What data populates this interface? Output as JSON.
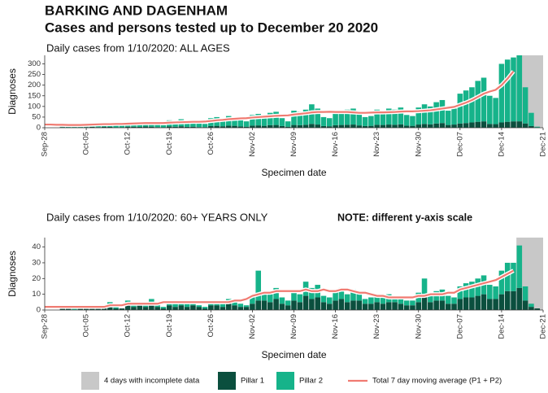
{
  "header": {
    "title": "BARKING AND DAGENHAM",
    "subtitle": "Cases and persons tested up to December 20 2020"
  },
  "shaded_label": "4 days with incomplete data",
  "shaded_color": "#c8c8c8",
  "chart_data": [
    {
      "type": "bar",
      "stacked": true,
      "title": "Daily cases from 1/10/2020: ALL AGES",
      "xlabel": "Specimen date",
      "ylabel": "Diagnoses",
      "x": [
        0,
        1,
        2,
        3,
        4,
        5,
        6,
        7,
        8,
        9,
        10,
        11,
        12,
        13,
        14,
        15,
        16,
        17,
        18,
        19,
        20,
        21,
        22,
        23,
        24,
        25,
        26,
        27,
        28,
        29,
        30,
        31,
        32,
        33,
        34,
        35,
        36,
        37,
        38,
        39,
        40,
        41,
        42,
        43,
        44,
        45,
        46,
        47,
        48,
        49,
        50,
        51,
        52,
        53,
        54,
        55,
        56,
        57,
        58,
        59,
        60,
        61,
        62,
        63,
        64,
        65,
        66,
        67,
        68,
        69,
        70,
        71,
        72,
        73,
        74,
        75,
        76,
        77,
        78,
        79,
        80,
        81,
        82,
        83
      ],
      "xlim": [
        0,
        84
      ],
      "xticks": [
        {
          "value": 0,
          "label": "Sep-28"
        },
        {
          "value": 7,
          "label": "Oct-05"
        },
        {
          "value": 14,
          "label": "Oct-12"
        },
        {
          "value": 21,
          "label": "Oct-19"
        },
        {
          "value": 28,
          "label": "Oct-26"
        },
        {
          "value": 35,
          "label": "Nov-02"
        },
        {
          "value": 42,
          "label": "Nov-09"
        },
        {
          "value": 49,
          "label": "Nov-16"
        },
        {
          "value": 56,
          "label": "Nov-23"
        },
        {
          "value": 63,
          "label": "Nov-30"
        },
        {
          "value": 70,
          "label": "Dec-07"
        },
        {
          "value": 77,
          "label": "Dec-14"
        },
        {
          "value": 84,
          "label": "Dec-21"
        }
      ],
      "ylim": [
        0,
        340
      ],
      "yticks": [
        0,
        50,
        100,
        150,
        200,
        250,
        300
      ],
      "shaded_xlim": [
        79.5,
        84
      ],
      "series": [
        {
          "name": "Pillar 1",
          "type": "bar",
          "color": "#0b4f3e",
          "values": [
            null,
            null,
            null,
            3,
            2,
            2,
            2,
            3,
            4,
            3,
            5,
            4,
            2,
            2,
            5,
            5,
            4,
            6,
            5,
            3,
            2,
            6,
            5,
            7,
            4,
            5,
            3,
            3,
            8,
            9,
            7,
            10,
            9,
            6,
            5,
            10,
            11,
            9,
            12,
            13,
            8,
            5,
            13,
            12,
            14,
            18,
            15,
            8,
            7,
            12,
            13,
            14,
            15,
            11,
            8,
            9,
            14,
            13,
            15,
            14,
            16,
            10,
            9,
            15,
            18,
            16,
            20,
            22,
            13,
            15,
            20,
            22,
            25,
            28,
            30,
            18,
            17,
            25,
            28,
            30,
            30,
            20,
            8,
            1
          ]
        },
        {
          "name": "Pillar 2",
          "type": "bar",
          "color": "#16b38a",
          "values": [
            null,
            null,
            null,
            12,
            10,
            6,
            8,
            15,
            16,
            12,
            20,
            18,
            10,
            8,
            20,
            23,
            18,
            24,
            20,
            12,
            10,
            29,
            25,
            33,
            21,
            25,
            17,
            15,
            37,
            41,
            33,
            45,
            41,
            29,
            25,
            50,
            54,
            46,
            58,
            62,
            37,
            25,
            67,
            63,
            71,
            92,
            75,
            42,
            38,
            63,
            67,
            71,
            75,
            59,
            42,
            46,
            71,
            67,
            75,
            71,
            79,
            50,
            46,
            80,
            92,
            84,
            100,
            108,
            67,
            75,
            140,
            153,
            165,
            192,
            205,
            132,
            123,
            275,
            292,
            300,
            310,
            170,
            62,
            4
          ]
        },
        {
          "name": "Total 7 day moving average (P1 + P2)",
          "type": "line",
          "color": "#f07b72",
          "values": [
            15,
            15,
            14,
            14,
            13,
            13,
            13,
            14,
            15,
            16,
            17,
            17,
            18,
            18,
            19,
            20,
            21,
            22,
            22,
            22,
            22,
            24,
            25,
            26,
            27,
            28,
            28,
            29,
            32,
            35,
            37,
            40,
            42,
            44,
            45,
            48,
            50,
            52,
            54,
            56,
            57,
            58,
            62,
            65,
            68,
            72,
            74,
            74,
            75,
            74,
            74,
            74,
            72,
            70,
            70,
            71,
            72,
            72,
            73,
            74,
            76,
            77,
            77,
            78,
            80,
            82,
            86,
            90,
            94,
            98,
            108,
            118,
            130,
            145,
            160,
            170,
            178,
            200,
            230,
            265,
            null,
            null,
            null,
            null
          ]
        }
      ]
    },
    {
      "type": "bar",
      "stacked": true,
      "title": "Daily cases from 1/10/2020: 60+ YEARS ONLY",
      "note": "NOTE: different y-axis scale",
      "xlabel": "Specimen date",
      "ylabel": "Diagnoses",
      "x": [
        0,
        1,
        2,
        3,
        4,
        5,
        6,
        7,
        8,
        9,
        10,
        11,
        12,
        13,
        14,
        15,
        16,
        17,
        18,
        19,
        20,
        21,
        22,
        23,
        24,
        25,
        26,
        27,
        28,
        29,
        30,
        31,
        32,
        33,
        34,
        35,
        36,
        37,
        38,
        39,
        40,
        41,
        42,
        43,
        44,
        45,
        46,
        47,
        48,
        49,
        50,
        51,
        52,
        53,
        54,
        55,
        56,
        57,
        58,
        59,
        60,
        61,
        62,
        63,
        64,
        65,
        66,
        67,
        68,
        69,
        70,
        71,
        72,
        73,
        74,
        75,
        76,
        77,
        78,
        79,
        80,
        81,
        82,
        83
      ],
      "xlim": [
        0,
        84
      ],
      "xticks": [
        {
          "value": 0,
          "label": "Sep-28"
        },
        {
          "value": 7,
          "label": "Oct-05"
        },
        {
          "value": 14,
          "label": "Oct-12"
        },
        {
          "value": 21,
          "label": "Oct-19"
        },
        {
          "value": 28,
          "label": "Oct-26"
        },
        {
          "value": 35,
          "label": "Nov-02"
        },
        {
          "value": 42,
          "label": "Nov-09"
        },
        {
          "value": 49,
          "label": "Nov-16"
        },
        {
          "value": 56,
          "label": "Nov-23"
        },
        {
          "value": 63,
          "label": "Nov-30"
        },
        {
          "value": 70,
          "label": "Dec-07"
        },
        {
          "value": 77,
          "label": "Dec-14"
        },
        {
          "value": 84,
          "label": "Dec-21"
        }
      ],
      "ylim": [
        0,
        46
      ],
      "yticks": [
        0,
        10,
        20,
        30,
        40
      ],
      "shaded_xlim": [
        79.5,
        84
      ],
      "series": [
        {
          "type": "bar",
          "color": "#0b4f3e",
          "values": [
            null,
            null,
            null,
            1,
            1,
            0,
            1,
            2,
            1,
            1,
            2,
            2,
            1,
            1,
            3,
            2,
            3,
            2,
            3,
            2,
            1,
            3,
            2,
            3,
            2,
            3,
            2,
            1,
            3,
            3,
            2,
            4,
            3,
            2,
            2,
            4,
            6,
            6,
            5,
            7,
            4,
            3,
            6,
            5,
            9,
            7,
            8,
            5,
            4,
            6,
            7,
            5,
            6,
            6,
            4,
            4,
            5,
            4,
            5,
            5,
            4,
            3,
            3,
            5,
            8,
            5,
            6,
            6,
            4,
            4,
            7,
            8,
            8,
            9,
            10,
            7,
            7,
            10,
            12,
            12,
            14,
            6,
            2,
            1
          ]
        },
        {
          "type": "bar",
          "color": "#16b38a",
          "values": [
            null,
            null,
            null,
            1,
            0,
            1,
            1,
            1,
            1,
            0,
            1,
            3,
            1,
            0,
            3,
            2,
            2,
            2,
            4,
            1,
            1,
            2,
            2,
            3,
            2,
            2,
            1,
            1,
            2,
            3,
            2,
            3,
            3,
            2,
            1,
            4,
            19,
            6,
            5,
            7,
            4,
            3,
            6,
            5,
            9,
            7,
            8,
            4,
            4,
            6,
            7,
            5,
            7,
            5,
            3,
            4,
            4,
            4,
            5,
            4,
            4,
            3,
            3,
            6,
            12,
            5,
            6,
            7,
            5,
            4,
            8,
            9,
            10,
            11,
            12,
            9,
            8,
            15,
            18,
            18,
            27,
            9,
            2,
            0
          ]
        },
        {
          "type": "line",
          "color": "#f07b72",
          "values": [
            2,
            2,
            2,
            2,
            2,
            2,
            2,
            2,
            2,
            2,
            2,
            3,
            3,
            3,
            4,
            4,
            4,
            4,
            4,
            4,
            5,
            5,
            5,
            5,
            5,
            5,
            5,
            5,
            5,
            5,
            5,
            5,
            6,
            6,
            7,
            9,
            10,
            11,
            11,
            12,
            12,
            12,
            12,
            12,
            13,
            12,
            12,
            13,
            12,
            12,
            13,
            13,
            12,
            11,
            11,
            10,
            9,
            9,
            8,
            8,
            8,
            8,
            8,
            9,
            9,
            10,
            10,
            10,
            11,
            11,
            13,
            14,
            15,
            16,
            17,
            18,
            19,
            21,
            23,
            25,
            null,
            null,
            null,
            null
          ]
        }
      ]
    }
  ]
}
